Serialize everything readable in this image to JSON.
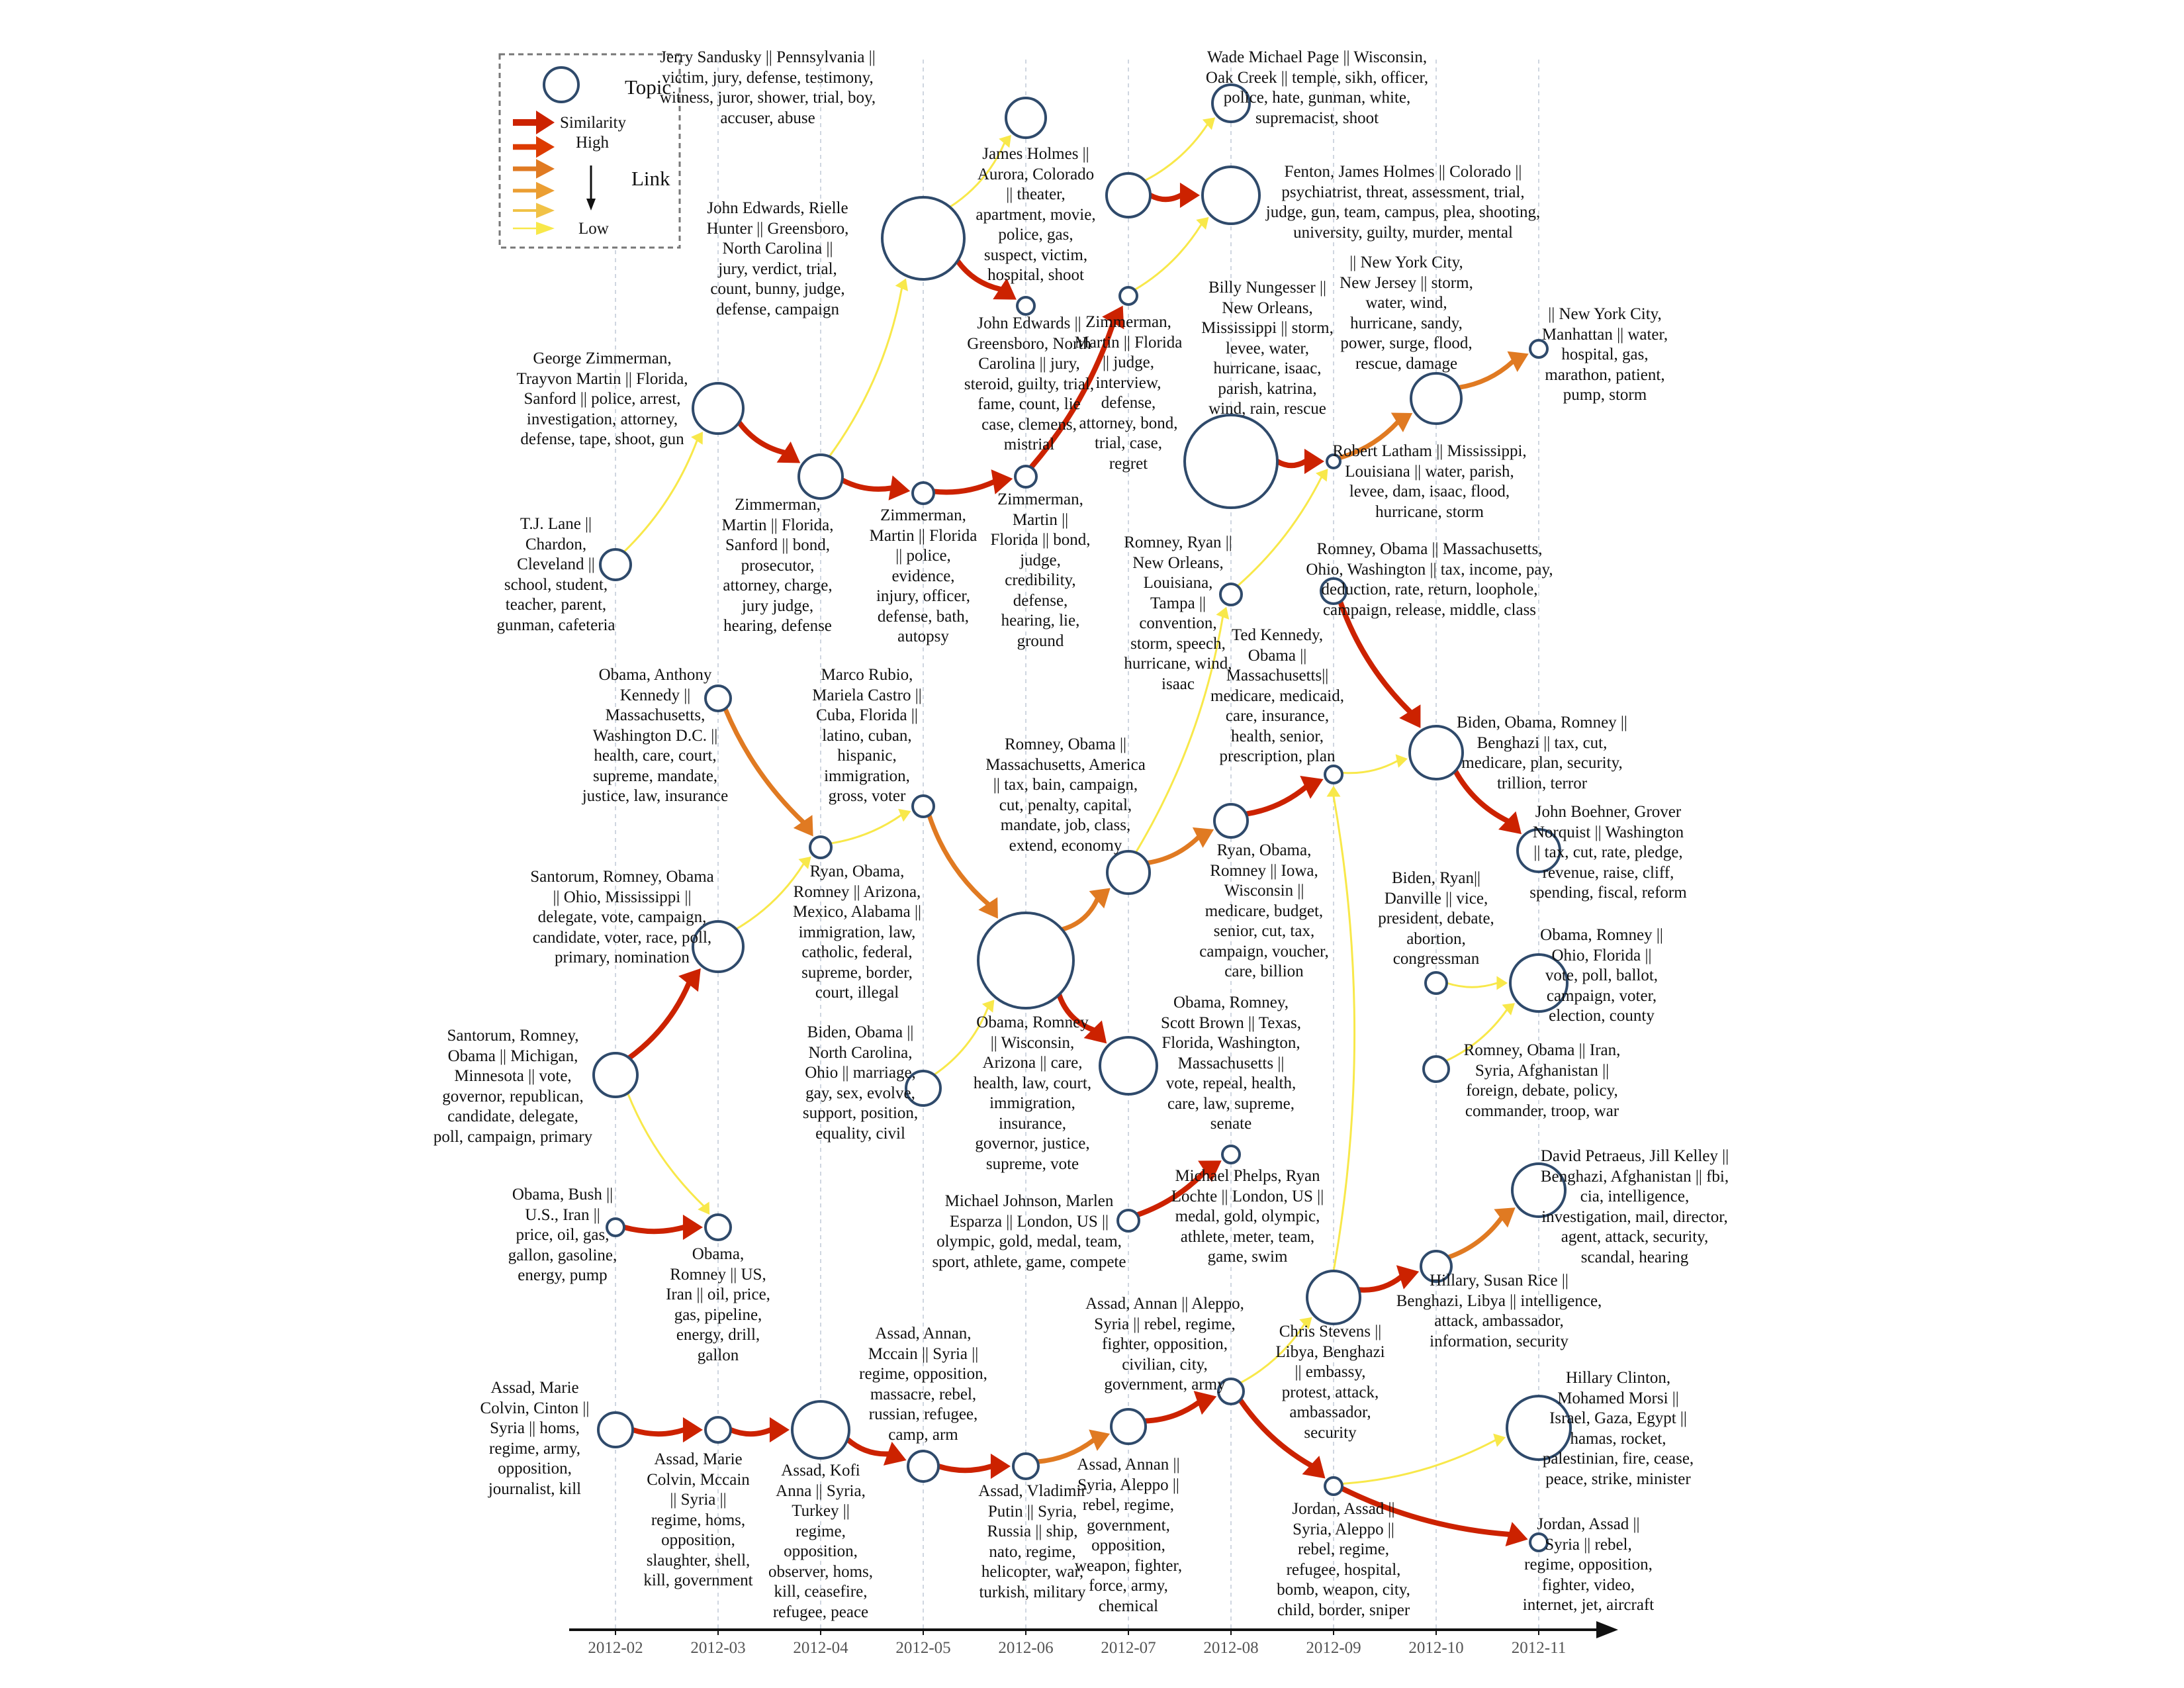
{
  "legend": {
    "topic_label": "Topic",
    "similarity_label": "Similarity",
    "high_label": "High",
    "low_label": "Low",
    "link_label": "Link",
    "colors": [
      "#cc2200",
      "#dd3b00",
      "#e07a22",
      "#eb9e32",
      "#f1c246",
      "#f8e84a"
    ]
  },
  "axis": {
    "months": [
      "2012-02",
      "2012-03",
      "2012-04",
      "2012-05",
      "2012-06",
      "2012-07",
      "2012-08",
      "2012-09",
      "2012-10",
      "2012-11"
    ]
  },
  "topics": [
    {
      "id": "sandusky",
      "lines": [
        "Jerry Sandusky || Pennsylvania ||",
        "victim, jury, defense, testimony,",
        "witness, juror, shower, trial, boy,",
        "accuser, abuse"
      ]
    },
    {
      "id": "edwards_big",
      "lines": [
        "John Edwards, Rielle",
        "Hunter || Greensboro,",
        "North Carolina ||",
        "jury, verdict, trial,",
        "count, bunny, judge,",
        "defense, campaign"
      ]
    },
    {
      "id": "edwards_small",
      "lines": [
        "John Edwards ||",
        "Greensboro, North",
        "Carolina || jury,",
        "steroid, guilty, trial,",
        "fame, count, lie",
        "case, clemens,",
        "mistrial"
      ]
    },
    {
      "id": "holmes_aurora",
      "lines": [
        "James Holmes ||",
        "Aurora, Colorado",
        "|| theater,",
        "apartment, movie,",
        "police, gas,",
        "suspect, victim,",
        "hospital, shoot"
      ]
    },
    {
      "id": "page",
      "lines": [
        "Wade Michael Page || Wisconsin,",
        "Oak Creek || temple, sikh, officer,",
        "police, hate, gunman, white,",
        "supremacist, shoot"
      ]
    },
    {
      "id": "fenton",
      "lines": [
        "Fenton, James Holmes || Colorado ||",
        "psychiatrist, threat, assessment, trial,",
        "judge, gun, team, campus, plea, shooting,",
        "university, guilty, murder, mental"
      ]
    },
    {
      "id": "zimm_jul",
      "lines": [
        "Zimmerman,",
        "Martin || Florida",
        "|| judge,",
        "interview,",
        "defense,",
        "attorney, bond,",
        "trial, case,",
        "regret"
      ]
    },
    {
      "id": "zimm_feb",
      "lines": [
        "George Zimmerman,",
        "Trayvon Martin || Florida,",
        "Sanford || police, arrest,",
        "investigation, attorney,",
        "defense, tape, shoot, gun"
      ]
    },
    {
      "id": "zimm_apr",
      "lines": [
        "Zimmerman,",
        "Martin || Florida,",
        "Sanford || bond,",
        "prosecutor,",
        "attorney, charge,",
        "jury judge,",
        "hearing, defense"
      ]
    },
    {
      "id": "zimm_may",
      "lines": [
        "Zimmerman,",
        "Martin || Florida",
        "|| police,",
        "evidence,",
        "injury, officer,",
        "defense, bath,",
        "autopsy"
      ]
    },
    {
      "id": "zimm_jun",
      "lines": [
        "Zimmerman,",
        "Martin ||",
        "Florida || bond,",
        "judge,",
        "credibility,",
        "defense,",
        "hearing, lie,",
        "ground"
      ]
    },
    {
      "id": "lane",
      "lines": [
        "T.J. Lane ||",
        "Chardon,",
        "Cleveland ||",
        "school, student,",
        "teacher, parent,",
        "gunman, cafeteria"
      ]
    },
    {
      "id": "nungesser",
      "lines": [
        "Billy Nungesser ||",
        "New Orleans,",
        "Mississippi || storm,",
        "levee, water,",
        "hurricane, isaac,",
        "parish, katrina,",
        "wind, rain, rescue"
      ]
    },
    {
      "id": "latham",
      "lines": [
        "Robert Latham || Mississippi,",
        "Louisiana || water, parish,",
        "levee, dam, isaac, flood,",
        "hurricane, storm"
      ]
    },
    {
      "id": "nyc_oct",
      "lines": [
        "|| New York City,",
        "New Jersey || storm,",
        "water, wind,",
        "hurricane, sandy,",
        "power, surge, flood,",
        "rescue, damage"
      ]
    },
    {
      "id": "nyc_nov",
      "lines": [
        "|| New York City,",
        "Manhattan || water,",
        "hospital, gas,",
        "marathon, patient,",
        "pump, storm"
      ]
    },
    {
      "id": "convention",
      "lines": [
        "Romney, Ryan ||",
        "New Orleans,",
        "Louisiana,",
        "Tampa ||",
        "convention,",
        "storm, speech,",
        "hurricane, wind,",
        "isaac"
      ]
    },
    {
      "id": "tax_sep",
      "lines": [
        "Romney, Obama || Massachusetts,",
        "Ohio, Washington || tax, income, pay,",
        "deduction, rate, return, loophole,",
        "campaign, release, middle, class"
      ]
    },
    {
      "id": "kennedy_mar",
      "lines": [
        "Obama, Anthony",
        "Kennedy ||",
        "Massachusetts,",
        "Washington D.C. ||",
        "health, care, court,",
        "supreme, mandate,",
        "justice, law, insurance"
      ]
    },
    {
      "id": "rubio",
      "lines": [
        "Marco Rubio,",
        "Mariela Castro ||",
        "Cuba, Florida ||",
        "latino, cuban,",
        "hispanic,",
        "immigration,",
        "gross, voter"
      ]
    },
    {
      "id": "bain",
      "lines": [
        "Romney, Obama ||",
        "Massachusetts, America",
        "|| tax, bain, campaign,",
        "cut, penalty, capital,",
        "mandate, job, class,",
        "extend, economy"
      ]
    },
    {
      "id": "tedkennedy",
      "lines": [
        "Ted Kennedy,",
        "Obama ||",
        "Massachusetts||",
        "medicare, medicaid,",
        "care, insurance,",
        "health, senior,",
        "prescription, plan"
      ]
    },
    {
      "id": "benghazi_debate",
      "lines": [
        "Biden, Obama, Romney ||",
        "Benghazi || tax, cut,",
        "medicare, plan, security,",
        "trillion, terror"
      ]
    },
    {
      "id": "santorum_mar",
      "lines": [
        "Santorum, Romney, Obama",
        "|| Ohio, Mississippi ||",
        "delegate, vote, campaign,",
        "candidate, voter, race, poll,",
        "primary, nomination"
      ]
    },
    {
      "id": "immigration",
      "lines": [
        "Ryan, Obama,",
        "Romney || Arizona,",
        "Mexico, Alabama ||",
        "immigration, law,",
        "catholic, federal,",
        "supreme, border,",
        "court, illegal"
      ]
    },
    {
      "id": "ryan_aug",
      "lines": [
        "Ryan, Obama,",
        "Romney || Iowa,",
        "Wisconsin ||",
        "medicare, budget,",
        "senior, cut, tax,",
        "campaign, voucher,",
        "care, billion"
      ]
    },
    {
      "id": "boehner",
      "lines": [
        "John Boehner, Grover",
        "Norquist || Washington",
        "|| tax, cut, rate, pledge,",
        "revenue, raise, cliff,",
        "spending, fiscal, reform"
      ]
    },
    {
      "id": "vp_debate",
      "lines": [
        "Biden, Ryan||",
        "Danville || vice,",
        "president, debate,",
        "abortion,",
        "congressman"
      ]
    },
    {
      "id": "ohio_nov",
      "lines": [
        "Obama, Romney ||",
        "Ohio, Florida ||",
        "vote, poll, ballot,",
        "campaign, voter,",
        "election, county"
      ]
    },
    {
      "id": "santorum_feb",
      "lines": [
        "Santorum, Romney,",
        "Obama || Michigan,",
        "Minnesota || vote,",
        "governor, republican,",
        "candidate, delegate,",
        "poll, campaign, primary"
      ]
    },
    {
      "id": "biden_marriage",
      "lines": [
        "Biden, Obama ||",
        "North Carolina,",
        "Ohio || marriage,",
        "gay, sex, evolve,",
        "support, position,",
        "equality, civil"
      ]
    },
    {
      "id": "healthcare_jun",
      "lines": [
        "Obama, Romney",
        "|| Wisconsin,",
        "Arizona || care,",
        "health, law, court,",
        "immigration,",
        "insurance,",
        "governor, justice,",
        "supreme, vote"
      ]
    },
    {
      "id": "brown",
      "lines": [
        "Obama, Romney,",
        "Scott Brown || Texas,",
        "Florida, Washington,",
        "Massachusetts ||",
        "vote, repeal, health,",
        "care, law, supreme,",
        "senate"
      ]
    },
    {
      "id": "foreign_debate",
      "lines": [
        "Romney, Obama || Iran,",
        "Syria, Afghanistan ||",
        "foreign, debate, policy,",
        "commander, troop, war"
      ]
    },
    {
      "id": "oil_feb",
      "lines": [
        "Obama, Bush ||",
        "U.S., Iran ||",
        "price, oil, gas,",
        "gallon, gasoline,",
        "energy, pump"
      ]
    },
    {
      "id": "oil_mar",
      "lines": [
        "Obama,",
        "Romney || US,",
        "Iran || oil, price,",
        "gas, pipeline,",
        "energy, drill,",
        "gallon"
      ]
    },
    {
      "id": "olympic_jul",
      "lines": [
        "Michael Johnson, Marlen",
        "Esparza || London, US ||",
        "olympic, gold, medal, team,",
        "sport, athlete, game, compete"
      ]
    },
    {
      "id": "phelps",
      "lines": [
        "Michael Phelps, Ryan",
        "Lochte || London, US ||",
        "medal, gold, olympic,",
        "athlete, meter, team,",
        "game, swim"
      ]
    },
    {
      "id": "petraeus",
      "lines": [
        "David Petraeus, Jill Kelley ||",
        "Benghazi, Afghanistan || fbi,",
        "cia, intelligence,",
        "investigation, mail, director,",
        "agent, attack, security,",
        "scandal, hearing"
      ]
    },
    {
      "id": "stevens",
      "lines": [
        "Chris Stevens ||",
        "Libya, Benghazi",
        "|| embassy,",
        "protest, attack,",
        "ambassador,",
        "security"
      ]
    },
    {
      "id": "rice",
      "lines": [
        "Hillary, Susan Rice ||",
        "Benghazi, Libya || intelligence,",
        "attack, ambassador,",
        "information, security"
      ]
    },
    {
      "id": "assad_feb",
      "lines": [
        "Assad, Marie",
        "Colvin, Cinton ||",
        "Syria || homs,",
        "regime, army,",
        "opposition,",
        "journalist, kill"
      ]
    },
    {
      "id": "assad_mar",
      "lines": [
        "Assad, Marie",
        "Colvin, Mccain",
        "|| Syria ||",
        "regime, homs,",
        "opposition,",
        "slaughter, shell,",
        "kill, government"
      ]
    },
    {
      "id": "assad_apr",
      "lines": [
        "Assad, Kofi",
        "Anna || Syria,",
        "Turkey ||",
        "regime,",
        "opposition,",
        "observer, homs,",
        "kill, ceasefire,",
        "refugee, peace"
      ]
    },
    {
      "id": "assad_may",
      "lines": [
        "Assad, Annan,",
        "Mccain || Syria ||",
        "regime, opposition,",
        "massacre, rebel,",
        "russian, refugee,",
        "camp, arm"
      ]
    },
    {
      "id": "assad_jun",
      "lines": [
        "Assad, Vladimir",
        "Putin || Syria,",
        "Russia || ship,",
        "nato, regime,",
        "helicopter, war,",
        "turkish, military"
      ]
    },
    {
      "id": "assad_jul",
      "lines": [
        "Assad, Annan ||",
        "Syria, Aleppo ||",
        "rebel, regime,",
        "government,",
        "opposition,",
        "weapon, fighter,",
        "force, army,",
        "chemical"
      ]
    },
    {
      "id": "assad_aug",
      "lines": [
        "Assad, Annan || Aleppo,",
        "Syria || rebel, regime,",
        "fighter, opposition,",
        "civilian, city,",
        "government, army"
      ]
    },
    {
      "id": "jordan_sep",
      "lines": [
        "Jordan, Assad ||",
        "Syria, Aleppo ||",
        "rebel, regime,",
        "refugee, hospital,",
        "bomb, weapon, city,",
        "child, border, sniper"
      ]
    },
    {
      "id": "jordan_nov",
      "lines": [
        "Jordan, Assad ||",
        "Syria || rebel,",
        "regime, opposition,",
        "fighter, video,",
        "internet, jet, aircraft"
      ]
    },
    {
      "id": "morsi",
      "lines": [
        "Hillary Clinton,",
        "Mohamed Morsi ||",
        "Israel, Gaza, Egypt ||",
        "hamas, rocket,",
        "palestinian, fire, cease,",
        "peace, strike, minister"
      ]
    }
  ],
  "links": [
    {
      "from": "edwards_big",
      "to": "sandusky",
      "similarity": "low"
    },
    {
      "from": "edwards_big",
      "to": "edwards_small",
      "similarity": "high"
    },
    {
      "from": "zimm_apr",
      "to": "edwards_big",
      "similarity": "low"
    },
    {
      "from": "holmes_aurora",
      "to": "page",
      "similarity": "low"
    },
    {
      "from": "holmes_aurora",
      "to": "fenton",
      "similarity": "high"
    },
    {
      "from": "zimm_jul",
      "to": "fenton",
      "similarity": "low"
    },
    {
      "from": "zimm_feb",
      "to": "zimm_apr",
      "similarity": "high"
    },
    {
      "from": "zimm_apr",
      "to": "zimm_may",
      "similarity": "high"
    },
    {
      "from": "zimm_may",
      "to": "zimm_jun",
      "similarity": "high"
    },
    {
      "from": "zimm_jun",
      "to": "zimm_jul",
      "similarity": "high"
    },
    {
      "from": "lane",
      "to": "zimm_feb",
      "similarity": "low"
    },
    {
      "from": "nungesser",
      "to": "latham",
      "similarity": "high"
    },
    {
      "from": "latham",
      "to": "nyc_oct",
      "similarity": "medium"
    },
    {
      "from": "nyc_oct",
      "to": "nyc_nov",
      "similarity": "medium"
    },
    {
      "from": "convention",
      "to": "latham",
      "similarity": "low"
    },
    {
      "from": "bain",
      "to": "convention",
      "similarity": "low"
    },
    {
      "from": "tax_sep",
      "to": "benghazi_debate",
      "similarity": "high"
    },
    {
      "from": "benghazi_debate",
      "to": "boehner",
      "similarity": "high"
    },
    {
      "from": "kennedy_mar",
      "to": "immigration",
      "similarity": "medium"
    },
    {
      "from": "rubio",
      "to": "healthcare_jun",
      "similarity": "medium"
    },
    {
      "from": "healthcare_jun",
      "to": "bain",
      "similarity": "medium"
    },
    {
      "from": "immigration",
      "to": "rubio",
      "similarity": "low"
    },
    {
      "from": "santorum_mar",
      "to": "immigration",
      "similarity": "low"
    },
    {
      "from": "bain",
      "to": "ryan_aug",
      "similarity": "medium"
    },
    {
      "from": "ryan_aug",
      "to": "tedkennedy",
      "similarity": "high"
    },
    {
      "from": "tedkennedy",
      "to": "benghazi_debate",
      "similarity": "low"
    },
    {
      "from": "santorum_feb",
      "to": "santorum_mar",
      "similarity": "high"
    },
    {
      "from": "santorum_feb",
      "to": "oil_mar",
      "similarity": "low"
    },
    {
      "from": "oil_feb",
      "to": "oil_mar",
      "similarity": "high"
    },
    {
      "from": "biden_marriage",
      "to": "healthcare_jun",
      "similarity": "low"
    },
    {
      "from": "healthcare_jun",
      "to": "brown",
      "similarity": "high"
    },
    {
      "from": "vp_debate",
      "to": "ohio_nov",
      "similarity": "low"
    },
    {
      "from": "foreign_debate",
      "to": "ohio_nov",
      "similarity": "low"
    },
    {
      "from": "olympic_jul",
      "to": "phelps",
      "similarity": "high"
    },
    {
      "from": "stevens",
      "to": "rice",
      "similarity": "high"
    },
    {
      "from": "rice",
      "to": "petraeus",
      "similarity": "medium"
    },
    {
      "from": "stevens",
      "to": "tedkennedy",
      "similarity": "low"
    },
    {
      "from": "assad_aug",
      "to": "stevens",
      "similarity": "low"
    },
    {
      "from": "jordan_sep",
      "to": "morsi",
      "similarity": "low"
    },
    {
      "from": "assad_feb",
      "to": "assad_mar",
      "similarity": "high"
    },
    {
      "from": "assad_mar",
      "to": "assad_apr",
      "similarity": "high"
    },
    {
      "from": "assad_apr",
      "to": "assad_may",
      "similarity": "high"
    },
    {
      "from": "assad_may",
      "to": "assad_jun",
      "similarity": "high"
    },
    {
      "from": "assad_jun",
      "to": "assad_jul",
      "similarity": "medium"
    },
    {
      "from": "assad_jul",
      "to": "assad_aug",
      "similarity": "high"
    },
    {
      "from": "assad_aug",
      "to": "jordan_sep",
      "similarity": "high"
    },
    {
      "from": "jordan_sep",
      "to": "jordan_nov",
      "similarity": "high"
    }
  ]
}
